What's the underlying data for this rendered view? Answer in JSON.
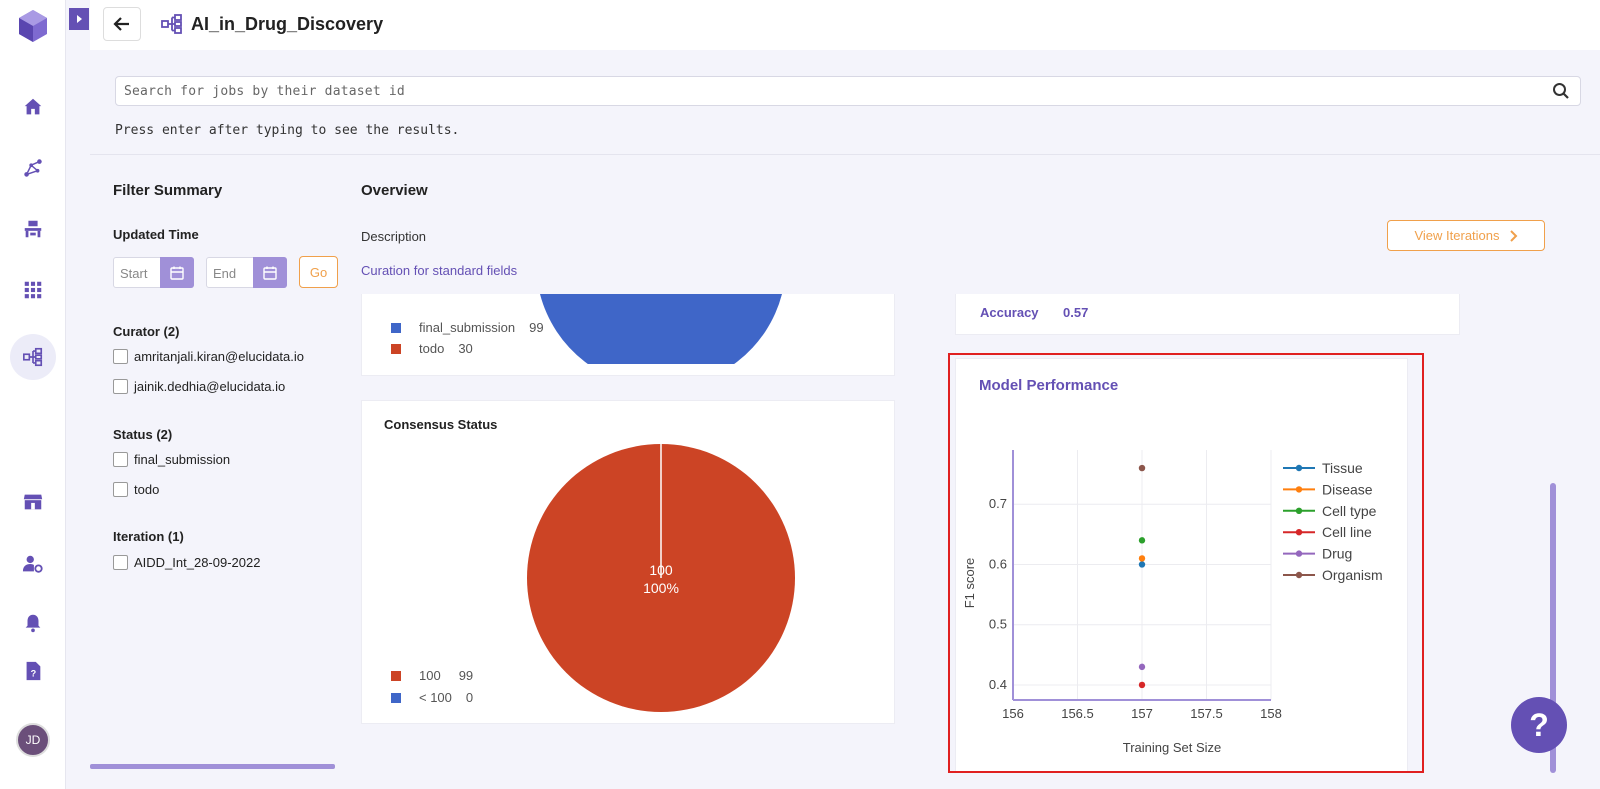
{
  "header": {
    "title": "AI_in_Drug_Discovery"
  },
  "search": {
    "placeholder": "Search for jobs by their dataset id",
    "hint": "Press enter after typing to see the results."
  },
  "filter": {
    "title": "Filter Summary",
    "updated_time_label": "Updated Time",
    "start_placeholder": "Start",
    "end_placeholder": "End",
    "go_label": "Go",
    "curator_label": "Curator (2)",
    "curators": [
      "amritanjali.kiran@elucidata.io",
      "jainik.dedhia@elucidata.io"
    ],
    "status_label": "Status (2)",
    "statuses": [
      "final_submission",
      "todo"
    ],
    "iteration_label": "Iteration (1)",
    "iterations": [
      "AIDD_Int_28-09-2022"
    ]
  },
  "overview": {
    "title": "Overview",
    "description_label": "Description",
    "description_value": "Curation for standard fields",
    "view_iterations_label": "View Iterations"
  },
  "status_pie": {
    "legend": [
      {
        "label": "final_submission",
        "value": "99",
        "color": "#3f66c8"
      },
      {
        "label": "todo",
        "value": "30",
        "color": "#cc4425"
      }
    ]
  },
  "consensus": {
    "title": "Consensus Status",
    "slice_value": "100",
    "slice_pct": "100%",
    "legend": [
      {
        "label": "100",
        "value": "99",
        "color": "#cc4425"
      },
      {
        "label": "< 100",
        "value": "0",
        "color": "#3f66c8"
      }
    ]
  },
  "accuracy": {
    "label": "Accuracy",
    "value": "0.57"
  },
  "model_performance": {
    "title": "Model Performance"
  },
  "chart_data": {
    "type": "scatter",
    "title": "",
    "xlabel": "Training Set Size",
    "ylabel": "F1 score",
    "xlim": [
      156,
      158
    ],
    "ylim": [
      0.375,
      0.79
    ],
    "xticks": [
      "156",
      "156.5",
      "157",
      "157.5",
      "158"
    ],
    "yticks": [
      "0.4",
      "0.5",
      "0.6",
      "0.7"
    ],
    "grid": true,
    "legend_position": "right",
    "series": [
      {
        "name": "Tissue",
        "color": "#1f77b4",
        "x": [
          157
        ],
        "y": [
          0.6
        ]
      },
      {
        "name": "Disease",
        "color": "#ff7f0e",
        "x": [
          157
        ],
        "y": [
          0.61
        ]
      },
      {
        "name": "Cell type",
        "color": "#2ca02c",
        "x": [
          157
        ],
        "y": [
          0.64
        ]
      },
      {
        "name": "Cell line",
        "color": "#d62728",
        "x": [
          157
        ],
        "y": [
          0.4
        ]
      },
      {
        "name": "Drug",
        "color": "#9467bd",
        "x": [
          157
        ],
        "y": [
          0.43
        ]
      },
      {
        "name": "Organism",
        "color": "#8c564b",
        "x": [
          157
        ],
        "y": [
          0.76
        ]
      }
    ]
  },
  "user": {
    "initials": "JD"
  },
  "help": {
    "label": "?"
  }
}
